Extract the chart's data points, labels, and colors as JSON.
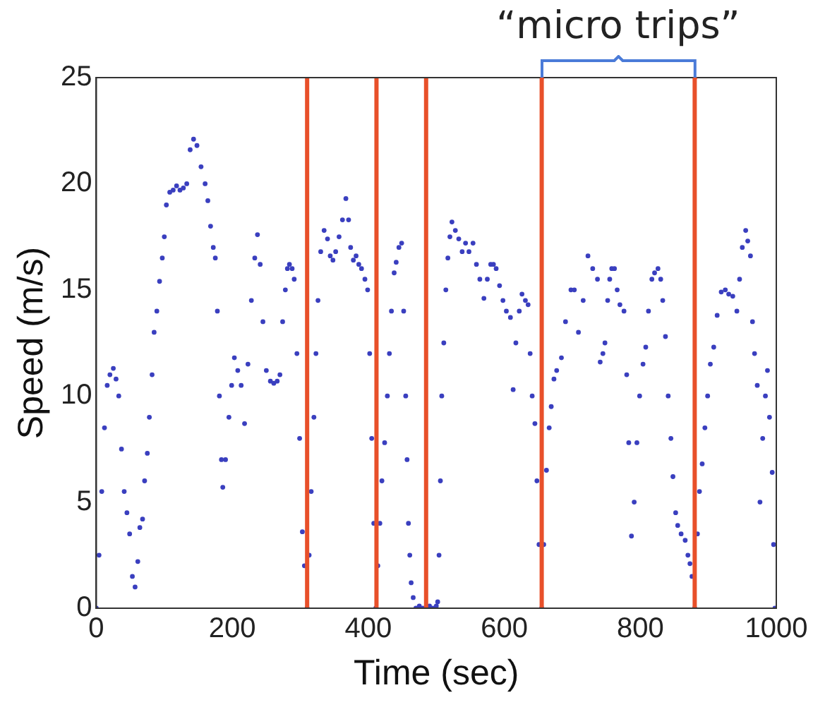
{
  "chart_data": {
    "type": "scatter",
    "xlabel": "Time (sec)",
    "ylabel": "Speed (m/s)",
    "annotations": [
      "“micro trips”"
    ],
    "xlim": [
      0,
      1000
    ],
    "xticks": [
      0,
      200,
      400,
      600,
      800,
      1000
    ],
    "ylim": [
      0,
      25
    ],
    "yticks": [
      0,
      5,
      10,
      15,
      20,
      25
    ],
    "grid": false,
    "legend": false,
    "marker": "circle",
    "ref_lines": [
      {
        "axis": "x",
        "value": 310,
        "color": "#e8502a"
      },
      {
        "axis": "x",
        "value": 412,
        "color": "#e8502a"
      },
      {
        "axis": "x",
        "value": 485,
        "color": "#e8502a"
      },
      {
        "axis": "x",
        "value": 655,
        "color": "#e8502a"
      },
      {
        "axis": "x",
        "value": 880,
        "color": "#e8502a"
      }
    ],
    "series": [
      {
        "color": "#3a3fbf",
        "x": [
          0,
          4,
          8,
          12,
          16,
          20,
          25,
          29,
          33,
          37,
          41,
          45,
          49,
          53,
          57,
          61,
          64,
          68,
          71,
          75,
          78,
          82,
          85,
          89,
          93,
          97,
          100,
          103,
          108,
          113,
          118,
          123,
          128,
          133,
          138,
          143,
          148,
          154,
          160,
          164,
          168,
          172,
          175,
          178,
          181,
          184,
          186,
          190,
          195,
          199,
          203,
          208,
          213,
          218,
          223,
          228,
          233,
          237,
          241,
          245,
          250,
          256,
          261,
          266,
          270,
          274,
          278,
          281,
          284,
          288,
          291,
          295,
          299,
          303,
          306,
          310,
          313,
          316,
          320,
          323,
          326,
          330,
          335,
          340,
          344,
          348,
          352,
          357,
          362,
          367,
          371,
          374,
          378,
          382,
          386,
          390,
          395,
          399,
          402,
          405,
          408,
          411,
          414,
          417,
          420,
          424,
          428,
          431,
          434,
          438,
          441,
          445,
          449,
          452,
          455,
          457,
          459,
          461,
          463,
          466,
          470,
          475,
          480,
          485,
          490,
          495,
          500,
          502,
          504,
          506,
          508,
          511,
          514,
          517,
          520,
          523,
          528,
          533,
          538,
          543,
          548,
          554,
          559,
          564,
          570,
          575,
          580,
          584,
          588,
          593,
          598,
          603,
          609,
          613,
          617,
          622,
          626,
          631,
          635,
          638,
          641,
          645,
          648,
          651,
          655,
          658,
          662,
          666,
          669,
          673,
          677,
          684,
          690,
          698,
          703,
          709,
          716,
          723,
          730,
          737,
          741,
          745,
          748,
          752,
          755,
          758,
          762,
          766,
          770,
          776,
          780,
          783,
          787,
          791,
          795,
          799,
          804,
          808,
          812,
          817,
          821,
          826,
          830,
          833,
          837,
          841,
          845,
          848,
          852,
          855,
          860,
          866,
          870,
          873,
          876,
          880,
          884,
          887,
          891,
          895,
          899,
          903,
          908,
          913,
          919,
          925,
          930,
          936,
          942,
          946,
          950,
          955,
          958,
          962,
          965,
          968,
          972,
          976,
          980,
          984,
          987,
          990,
          994,
          996,
          998
        ],
        "values": [
          0,
          2.5,
          5.5,
          8.5,
          10.5,
          11,
          11.3,
          10.8,
          10,
          7.5,
          5.5,
          4.5,
          3.5,
          1.5,
          1,
          2.2,
          3.8,
          4.2,
          6,
          7.3,
          9,
          11,
          13,
          14,
          15.4,
          16.5,
          17.5,
          19,
          19.6,
          19.7,
          19.9,
          19.7,
          19.8,
          20,
          21.6,
          22.1,
          21.8,
          20.8,
          20,
          19.2,
          18,
          17,
          16.5,
          14,
          10,
          7,
          5.7,
          7,
          9,
          10.5,
          11.8,
          11.2,
          10.5,
          8.7,
          11.5,
          14.5,
          16.5,
          17.6,
          16.2,
          13.5,
          11.2,
          10.7,
          10.6,
          10.7,
          11,
          13.5,
          15,
          16,
          16.2,
          16,
          15.5,
          12,
          8,
          3.6,
          2,
          0,
          2.5,
          5.5,
          9,
          12,
          14.5,
          16.8,
          17.8,
          17.4,
          16.6,
          16.4,
          16.8,
          17.5,
          18.3,
          19.3,
          18.3,
          17,
          16.4,
          16.6,
          16.2,
          16,
          15.5,
          15,
          12,
          8,
          4,
          0,
          2,
          4,
          6,
          7.8,
          10,
          12,
          14,
          15.8,
          16.3,
          17,
          17.2,
          14,
          10,
          7,
          4,
          2.5,
          1.2,
          0.5,
          0,
          0.1,
          0,
          null,
          0.1,
          0,
          0.1,
          0.3,
          2.5,
          6,
          10,
          12.5,
          15,
          16.5,
          17.5,
          18.2,
          17.8,
          17.4,
          16.8,
          17.2,
          16.8,
          17.2,
          16.2,
          15.5,
          14.6,
          15.5,
          16.2,
          16.2,
          16,
          15.2,
          14.5,
          14,
          13.7,
          10.3,
          12.5,
          14,
          14.8,
          14.5,
          14.3,
          12,
          10,
          8.7,
          6,
          3,
          0,
          3,
          6.5,
          8.5,
          9.5,
          10.8,
          11.2,
          11.8,
          13.5,
          15,
          15,
          13,
          14.5,
          16.6,
          16,
          15.5,
          11.6,
          12,
          12.5,
          14.5,
          15.5,
          16,
          16,
          15,
          14.3,
          14,
          11,
          7.8,
          3.4,
          5,
          7.8,
          10,
          11.5,
          12.3,
          14,
          15.5,
          15.8,
          16,
          15.5,
          14.5,
          12.8,
          10,
          8,
          6.2,
          4.5,
          3.9,
          3.5,
          3.2,
          2.5,
          2.1,
          1.5,
          0,
          3.5,
          5.5,
          6.8,
          8.5,
          10,
          11.5,
          12.3,
          13.8,
          14.9,
          15,
          14.8,
          14.7,
          14,
          15.5,
          17,
          17.8,
          17.3,
          16.6,
          13.5,
          12,
          10.5,
          5,
          8,
          10,
          11.2,
          9,
          6.4,
          3,
          0
        ]
      }
    ]
  }
}
